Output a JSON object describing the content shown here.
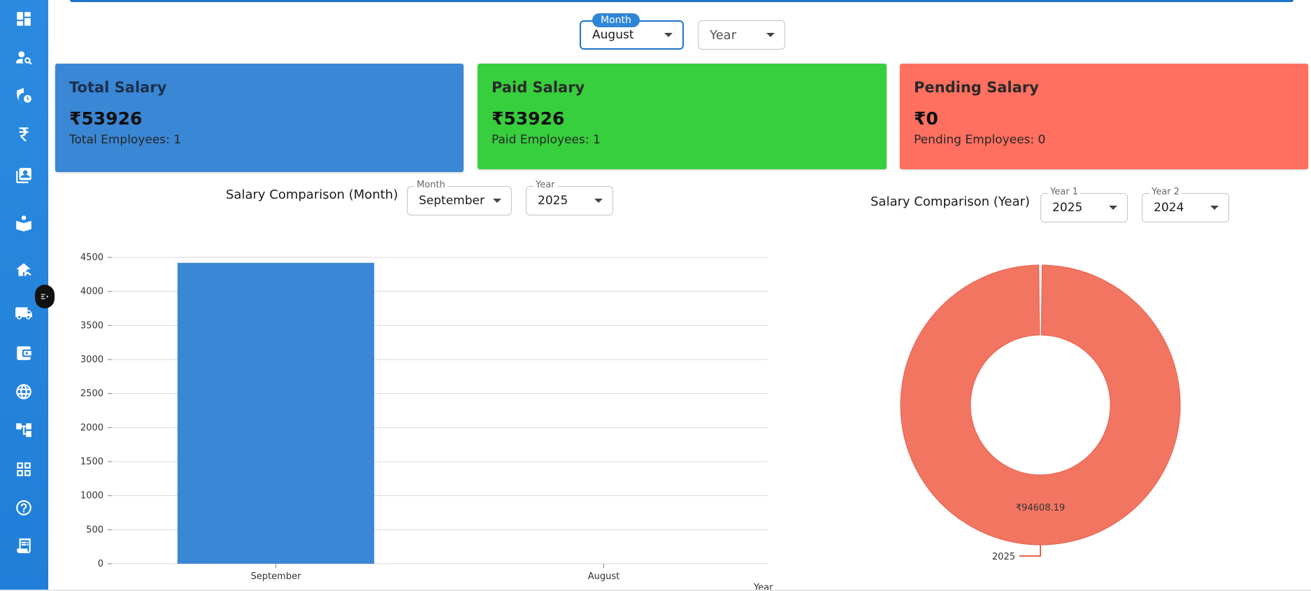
{
  "sidebar": {
    "items": [
      {
        "icon": "dashboard-icon"
      },
      {
        "icon": "user-search-icon"
      },
      {
        "icon": "shield-clock-icon"
      },
      {
        "icon": "rupee-icon"
      },
      {
        "icon": "contact-card-icon"
      },
      {
        "icon": "reading-icon"
      },
      {
        "icon": "home-work-icon"
      },
      {
        "icon": "truck-icon"
      },
      {
        "icon": "wallet-icon"
      },
      {
        "icon": "globe-icon"
      },
      {
        "icon": "hierarchy-icon"
      },
      {
        "icon": "apps-grid-icon"
      },
      {
        "icon": "help-icon"
      },
      {
        "icon": "receipt-icon"
      }
    ]
  },
  "filters": {
    "month_label": "Month",
    "month_value": "August",
    "year_placeholder": "Year"
  },
  "cards": {
    "total": {
      "title": "Total Salary",
      "amount": "₹53926",
      "sub": "Total Employees: 1"
    },
    "paid": {
      "title": "Paid Salary",
      "amount": "₹53926",
      "sub": "Paid Employees: 1"
    },
    "pending": {
      "title": "Pending Salary",
      "amount": "₹0",
      "sub": "Pending Employees: 0"
    }
  },
  "month_comparison": {
    "title": "Salary Comparison (Month)",
    "month_label": "Month",
    "month_value": "September",
    "year_label": "Year",
    "year_value": "2025"
  },
  "year_comparison": {
    "title": "Salary Comparison (Year)",
    "year1_label": "Year 1",
    "year1_value": "2025",
    "year2_label": "Year 2",
    "year2_value": "2024"
  },
  "chart_data": [
    {
      "type": "bar",
      "categories": [
        "September",
        "August"
      ],
      "values": [
        4420,
        0
      ],
      "xlabel": "Year",
      "ylim": [
        0,
        4500
      ],
      "yticks": [
        0,
        500,
        1000,
        1500,
        2000,
        2500,
        3000,
        3500,
        4000,
        4500
      ],
      "color": "#3a87d5",
      "grid": true
    },
    {
      "type": "pie",
      "donut": true,
      "categories": [
        "2025"
      ],
      "values": [
        94608.19
      ],
      "slice_labels": [
        "₹94608.19"
      ],
      "color": "#f27562"
    }
  ]
}
